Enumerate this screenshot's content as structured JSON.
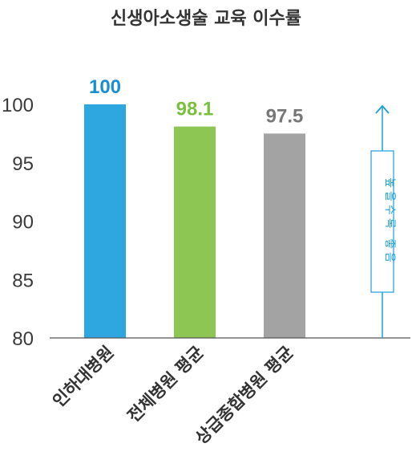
{
  "chart_data": {
    "type": "bar",
    "title": "신생아소생술 교육 이수률",
    "categories": [
      "인하대병원",
      "전체병원 평균",
      "상급종합병원 평균"
    ],
    "values": [
      100,
      98.1,
      97.5
    ],
    "value_labels": [
      "100",
      "98.1",
      "97.5"
    ],
    "colors": [
      "#2ea6df",
      "#8ec653",
      "#a3a3a3"
    ],
    "label_colors": [
      "#1a8fd0",
      "#7cbf3e",
      "#777777"
    ],
    "ylim": [
      80,
      102
    ],
    "yticks": [
      80,
      85,
      90,
      95,
      100
    ],
    "grid": false,
    "annotation": {
      "text": "높을수록 좋음",
      "color": "#1aa0d8"
    }
  }
}
